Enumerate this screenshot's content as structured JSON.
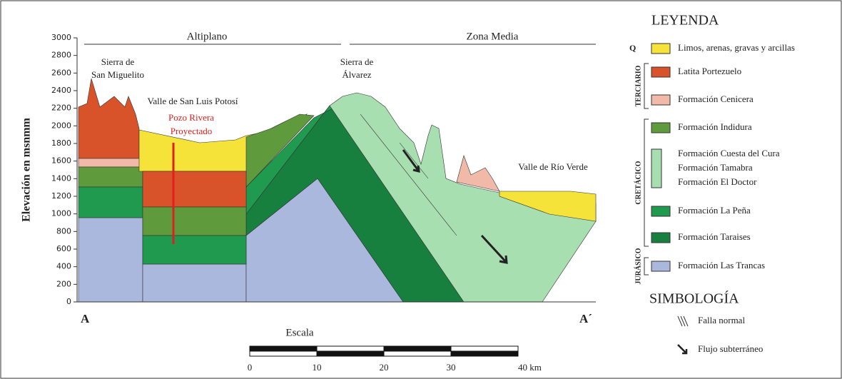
{
  "section": {
    "y_axis_label": "Elevación en msnmm",
    "yticks": [
      "0",
      "200",
      "400",
      "600",
      "800",
      "1000",
      "1200",
      "1400",
      "1600",
      "1800",
      "2000",
      "2200",
      "2400",
      "2600",
      "2800",
      "3000"
    ],
    "zones": [
      "Altiplano",
      "Zona Media"
    ],
    "labels": [
      [
        "Sierra de",
        "San Miguelito"
      ],
      [
        "Valle de San Luis Potosí"
      ],
      [
        "Sierra de",
        "Álvarez"
      ],
      [
        "Valle de Río Verde"
      ]
    ],
    "well": [
      "Pozo Rivera",
      "Proyectado"
    ],
    "ends": [
      "A",
      "A´"
    ],
    "scale": {
      "title": "Escala",
      "ticks": [
        "0",
        "10",
        "20",
        "30",
        "40 km"
      ]
    }
  },
  "legend": {
    "title": "LEYENDA",
    "groups": [
      {
        "period": "Q",
        "items": [
          {
            "label": "Limos, arenas, gravas y arcillas",
            "color": "#f5e33a"
          }
        ]
      },
      {
        "period": "TERCIARIO",
        "items": [
          {
            "label": "Latita Portezuelo",
            "color": "#d9532a"
          },
          {
            "label": "Formación Cenicera",
            "color": "#f0b9a8"
          }
        ]
      },
      {
        "period": "CRETÁCICO",
        "items": [
          {
            "label": "Formación Indidura",
            "color": "#5f9a3c"
          },
          {
            "label": "Formación Cuesta del Cura",
            "color": "#a8dfb0"
          },
          {
            "label": "Formación Tamabra",
            "color": "#a8dfb0"
          },
          {
            "label": "Formación El Doctor",
            "color": "#a8dfb0"
          },
          {
            "label": "Formación La Peña",
            "color": "#1f9a4e"
          },
          {
            "label": "Formación Taraises",
            "color": "#17803f"
          }
        ]
      },
      {
        "period": "JURÁSICO",
        "items": [
          {
            "label": "Formación Las Trancas",
            "color": "#aab8de"
          }
        ]
      }
    ]
  },
  "symbology": {
    "title": "SIMBOLOGÍA",
    "items": [
      "Falla normal",
      "Flujo subterráneo"
    ]
  }
}
